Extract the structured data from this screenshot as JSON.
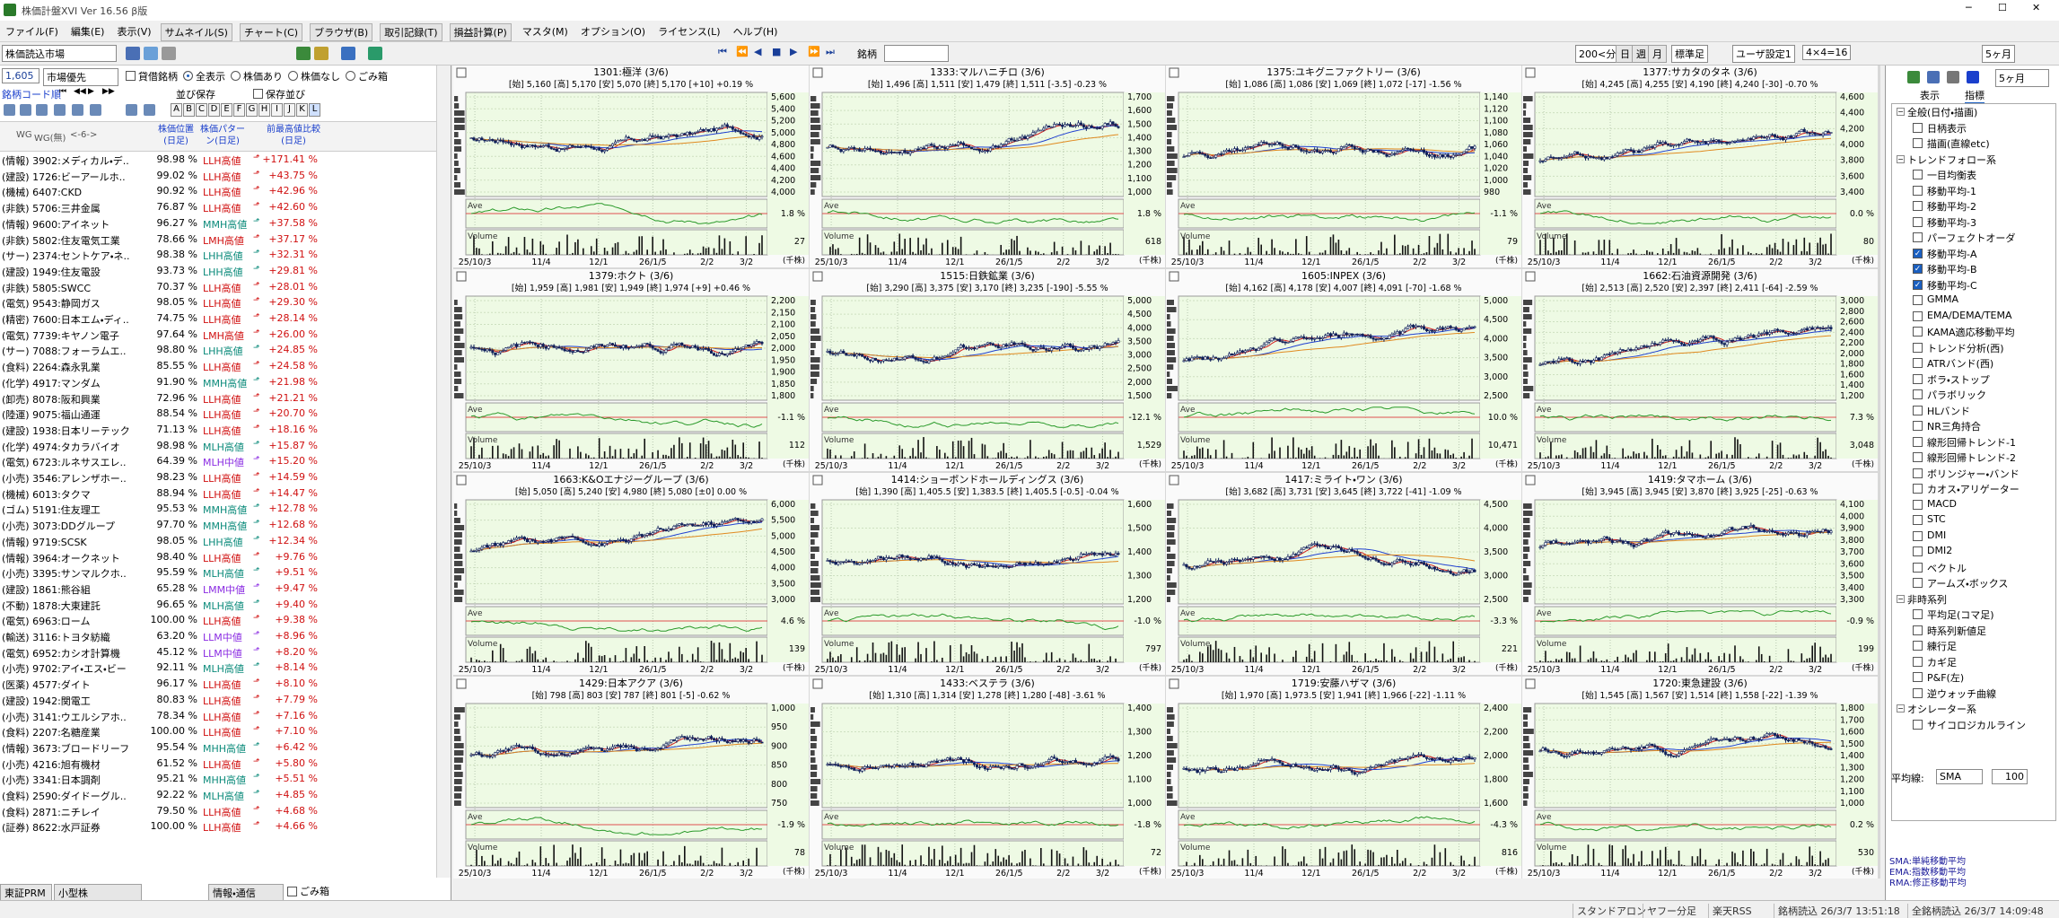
{
  "window": {
    "title": "株価計盤XVI Ver 16.56 β版"
  },
  "menu": [
    "ファイル(F)",
    "編集(E)",
    "表示(V)",
    "サムネイル(S)",
    "チャート(C)",
    "ブラウザ(B)",
    "取引記録(T)",
    "損益計算(P)",
    "マスタ(M)",
    "オプション(O)",
    "ライセンス(L)",
    "ヘルプ(H)"
  ],
  "toolbar": {
    "market": "株価読込市場",
    "stock_label": "銘柄",
    "interval": "200<分",
    "day": "日",
    "week": "週",
    "month": "月",
    "candle": "標準足",
    "user": "ユーザ設定1",
    "layout": "4×4=16",
    "period": "5ヶ月"
  },
  "list_panel": {
    "count": "1,605",
    "sort": "市場優先",
    "filters": [
      "貸借銘柄",
      "全表示",
      "株価あり",
      "株価なし",
      "ごみ箱"
    ],
    "code_label": "銘柄コード順",
    "save": "並び保存",
    "saved": "保存並び",
    "letters": [
      "A",
      "B",
      "C",
      "D",
      "E",
      "F",
      "G",
      "H",
      "I",
      "J",
      "K",
      "L"
    ],
    "columns": [
      "WG",
      "WG(無)",
      "<-6->",
      "株価位置(日足)",
      "株価パターン(日足)",
      "前最高値比較(日足)"
    ],
    "rows": [
      [
        "(情報) 3902:メディカル・デ..",
        "98.98 %",
        "LLH高値",
        "+171.41 %"
      ],
      [
        "(建設) 1726:ビーアールホ..",
        "99.02 %",
        "LLH高値",
        "+43.75 %"
      ],
      [
        "(機械) 6407:CKD",
        "90.92 %",
        "LLH高値",
        "+42.96 %"
      ],
      [
        "(非鉄) 5706:三井金属",
        "76.87 %",
        "LLH高値",
        "+42.60 %"
      ],
      [
        "(情報) 9600:アイネット",
        "96.27 %",
        "MMH高値",
        "+37.58 %"
      ],
      [
        "(非鉄) 5802:住友電気工業",
        "78.66 %",
        "LMH高値",
        "+37.17 %"
      ],
      [
        "(サー) 2374:セントケア・ネ..",
        "98.38 %",
        "LHH高値",
        "+32.31 %"
      ],
      [
        "(建設) 1949:住友電設",
        "93.73 %",
        "LHH高値",
        "+29.81 %"
      ],
      [
        "(非鉄) 5805:SWCC",
        "70.37 %",
        "LLH高値",
        "+28.01 %"
      ],
      [
        "(電気) 9543:静岡ガス",
        "98.05 %",
        "LLH高値",
        "+29.30 %"
      ],
      [
        "(精密) 7600:日本エム・ディ..",
        "74.75 %",
        "LLH高値",
        "+28.14 %"
      ],
      [
        "(電気) 7739:キヤノン電子",
        "97.64 %",
        "LMH高値",
        "+26.00 %"
      ],
      [
        "(サー) 7088:フォーラムエ..",
        "98.80 %",
        "LHH高値",
        "+24.85 %"
      ],
      [
        "(食料) 2264:森永乳業",
        "85.55 %",
        "LLH高値",
        "+24.58 %"
      ],
      [
        "(化学) 4917:マンダム",
        "91.90 %",
        "MMH高値",
        "+21.98 %"
      ],
      [
        "(卸売) 8078:阪和興業",
        "72.96 %",
        "LLH高値",
        "+21.21 %"
      ],
      [
        "(陸運) 9075:福山通運",
        "88.54 %",
        "LLH高値",
        "+20.70 %"
      ],
      [
        "(建設) 1938:日本リーテック",
        "71.13 %",
        "LLH高値",
        "+18.16 %"
      ],
      [
        "(化学) 4974:タカラバイオ",
        "98.98 %",
        "MLH高値",
        "+15.87 %"
      ],
      [
        "(電気) 6723:ルネサスエレ..",
        "64.39 %",
        "MLH中値",
        "+15.20 %"
      ],
      [
        "(小売) 3546:アレンザホー..",
        "98.23 %",
        "LLH高値",
        "+14.59 %"
      ],
      [
        "(機械) 6013:タクマ",
        "88.94 %",
        "LLH高値",
        "+14.47 %"
      ],
      [
        "(ゴム) 5191:住友理工",
        "95.53 %",
        "MMH高値",
        "+12.78 %"
      ],
      [
        "(小売) 3073:DDグループ",
        "97.70 %",
        "MMH高値",
        "+12.68 %"
      ],
      [
        "(情報) 9719:SCSK",
        "98.05 %",
        "LHH高値",
        "+12.34 %"
      ],
      [
        "(情報) 3964:オークネット",
        "98.40 %",
        "LLH高値",
        "+9.76 %"
      ],
      [
        "(小売) 3395:サンマルクホ..",
        "95.59 %",
        "MLH高値",
        "+9.51 %"
      ],
      [
        "(建設) 1861:熊谷組",
        "65.28 %",
        "LMM中値",
        "+9.47 %"
      ],
      [
        "(不動) 1878:大東建託",
        "96.65 %",
        "MLH高値",
        "+9.40 %"
      ],
      [
        "(電気) 6963:ローム",
        "100.00 %",
        "LLH高値",
        "+9.38 %"
      ],
      [
        "(輸送) 3116:トヨタ紡織",
        "63.20 %",
        "LLM中値",
        "+8.96 %"
      ],
      [
        "(電気) 6952:カシオ計算機",
        "45.12 %",
        "LLM中値",
        "+8.20 %"
      ],
      [
        "(小売) 9702:アイ・エス・ビー",
        "92.11 %",
        "MLH高値",
        "+8.14 %"
      ],
      [
        "(医薬) 4577:ダイト",
        "96.17 %",
        "LLH高値",
        "+8.10 %"
      ],
      [
        "(建設) 1942:関電工",
        "80.83 %",
        "LLH高値",
        "+7.79 %"
      ],
      [
        "(小売) 3141:ウエルシアホ..",
        "78.34 %",
        "LLH高値",
        "+7.16 %"
      ],
      [
        "(食料) 2207:名糖産業",
        "100.00 %",
        "LLH高値",
        "+7.10 %"
      ],
      [
        "(情報) 3673:ブロードリーフ",
        "95.54 %",
        "MHH高値",
        "+6.42 %"
      ],
      [
        "(小売) 4216:旭有機材",
        "61.52 %",
        "LLH高値",
        "+5.80 %"
      ],
      [
        "(小売) 3341:日本調剤",
        "95.21 %",
        "MHH高値",
        "+5.51 %"
      ],
      [
        "(食料) 2590:ダイドーグル..",
        "92.22 %",
        "MLH高値",
        "+4.85 %"
      ],
      [
        "(食料) 2871:ニチレイ",
        "79.50 %",
        "LLH高値",
        "+4.68 %"
      ],
      [
        "(証券) 8622:水戸証券",
        "100.00 %",
        "LLH高値",
        "+4.66 %"
      ]
    ],
    "footer": [
      "東証PRM",
      "小型株",
      "情報・通信",
      "ごみ箱"
    ]
  },
  "chart_common": {
    "x_labels": [
      "25/10/3",
      "11/4",
      "12/1",
      "26/1/5",
      "2/2",
      "3/2"
    ],
    "ave_label": "Ave",
    "volume_label": "Volume",
    "unit": "(千株)"
  },
  "charts": [
    {
      "title": "1301:極洋 (3/6)",
      "info": "[始] 5,160 [高] 5,170 [安] 5,070 [終] 5,170 [+10] +0.19 %",
      "yticks": [
        "5,600",
        "5,400",
        "5,200",
        "5,000",
        "4,800",
        "4,600",
        "4,400",
        "4,200",
        "4,000"
      ],
      "ave": "1.8 %",
      "volume": "27"
    },
    {
      "title": "1333:マルハニチロ (3/6)",
      "info": "[始] 1,496 [高] 1,511 [安] 1,479 [終] 1,511 [-3.5] -0.23 %",
      "yticks": [
        "1,700",
        "1,600",
        "1,500",
        "1,400",
        "1,300",
        "1,200",
        "1,100",
        "1,000"
      ],
      "ave": "1.8 %",
      "volume": "618"
    },
    {
      "title": "1375:ユキグニファクトリー (3/6)",
      "info": "[始] 1,086 [高] 1,086 [安] 1,069 [終] 1,072 [-17] -1.56 %",
      "yticks": [
        "1,140",
        "1,120",
        "1,100",
        "1,080",
        "1,060",
        "1,040",
        "1,020",
        "1,000",
        "980"
      ],
      "ave": "-1.1 %",
      "volume": "79"
    },
    {
      "title": "1377:サカタのタネ (3/6)",
      "info": "[始] 4,245 [高] 4,255 [安] 4,190 [終] 4,240 [-30] -0.70 %",
      "yticks": [
        "4,600",
        "4,400",
        "4,200",
        "4,000",
        "3,800",
        "3,600",
        "3,400"
      ],
      "ave": "0.0 %",
      "volume": "80"
    },
    {
      "title": "1379:ホクト (3/6)",
      "info": "[始] 1,959 [高] 1,981 [安] 1,949 [終] 1,974 [+9] +0.46 %",
      "yticks": [
        "2,200",
        "2,150",
        "2,100",
        "2,050",
        "2,000",
        "1,950",
        "1,900",
        "1,850",
        "1,800"
      ],
      "ave": "-1.1 %",
      "volume": "112"
    },
    {
      "title": "1515:日鉄鉱業 (3/6)",
      "info": "[始] 3,290 [高] 3,375 [安] 3,170 [終] 3,235 [-190] -5.55 %",
      "yticks": [
        "5,000",
        "4,500",
        "4,000",
        "3,500",
        "3,000",
        "2,500",
        "2,000",
        "1,500"
      ],
      "ave": "-12.1 %",
      "volume": "1,529"
    },
    {
      "title": "1605:INPEX (3/6)",
      "info": "[始] 4,162 [高] 4,178 [安] 4,007 [終] 4,091 [-70] -1.68 %",
      "yticks": [
        "5,000",
        "4,500",
        "4,000",
        "3,500",
        "3,000",
        "2,500"
      ],
      "ave": "10.0 %",
      "volume": "10,471"
    },
    {
      "title": "1662:石油資源開発 (3/6)",
      "info": "[始] 2,513 [高] 2,520 [安] 2,397 [終] 2,411 [-64] -2.59 %",
      "yticks": [
        "3,000",
        "2,800",
        "2,600",
        "2,400",
        "2,200",
        "2,000",
        "1,800",
        "1,600",
        "1,400",
        "1,200"
      ],
      "ave": "7.3 %",
      "volume": "3,048"
    },
    {
      "title": "1663:K&Oエナジーグループ (3/6)",
      "info": "[始] 5,050 [高] 5,240 [安] 4,980 [終] 5,080 [±0] 0.00 %",
      "yticks": [
        "6,000",
        "5,500",
        "5,000",
        "4,500",
        "4,000",
        "3,500",
        "3,000"
      ],
      "ave": "4.6 %",
      "volume": "139"
    },
    {
      "title": "1414:ショーボンドホールディングス (3/6)",
      "info": "[始] 1,390 [高] 1,405.5 [安] 1,383.5 [終] 1,405.5 [-0.5] -0.04 %",
      "yticks": [
        "1,600",
        "1,500",
        "1,400",
        "1,300",
        "1,200"
      ],
      "ave": "-1.0 %",
      "volume": "797"
    },
    {
      "title": "1417:ミライト・ワン (3/6)",
      "info": "[始] 3,682 [高] 3,731 [安] 3,645 [終] 3,722 [-41] -1.09 %",
      "yticks": [
        "4,500",
        "4,000",
        "3,500",
        "3,000",
        "2,500"
      ],
      "ave": "-3.3 %",
      "volume": "221"
    },
    {
      "title": "1419:タマホーム (3/6)",
      "info": "[始] 3,945 [高] 3,945 [安] 3,870 [終] 3,925 [-25] -0.63 %",
      "yticks": [
        "4,100",
        "4,000",
        "3,900",
        "3,800",
        "3,700",
        "3,600",
        "3,500",
        "3,400",
        "3,300"
      ],
      "ave": "-0.9 %",
      "volume": "199"
    },
    {
      "title": "1429:日本アクア (3/6)",
      "info": "[始] 798 [高] 803 [安] 787 [終] 801 [-5] -0.62 %",
      "yticks": [
        "1,000",
        "950",
        "900",
        "850",
        "800",
        "750"
      ],
      "ave": "-1.9 %",
      "volume": "78"
    },
    {
      "title": "1433:ベステラ (3/6)",
      "info": "[始] 1,310 [高] 1,314 [安] 1,278 [終] 1,280 [-48] -3.61 %",
      "yticks": [
        "1,400",
        "1,300",
        "1,200",
        "1,100",
        "1,000"
      ],
      "ave": "-1.8 %",
      "volume": "72"
    },
    {
      "title": "1719:安藤ハザマ (3/6)",
      "info": "[始] 1,970 [高] 1,973.5 [安] 1,941 [終] 1,966 [-22] -1.11 %",
      "yticks": [
        "2,400",
        "2,200",
        "2,000",
        "1,800",
        "1,600"
      ],
      "ave": "-4.3 %",
      "volume": "816"
    },
    {
      "title": "1720:東急建設 (3/6)",
      "info": "[始] 1,545 [高] 1,567 [安] 1,514 [終] 1,558 [-22] -1.39 %",
      "yticks": [
        "1,800",
        "1,700",
        "1,600",
        "1,500",
        "1,400",
        "1,300",
        "1,200",
        "1,100",
        "1,000"
      ],
      "ave": "0.2 %",
      "volume": "530"
    }
  ],
  "indicator_panel": {
    "tabs": [
      "表示",
      "指標"
    ],
    "items": [
      {
        "label": "全般(日付・描画)",
        "level": 0,
        "checked": false
      },
      {
        "label": "日柄表示",
        "level": 1,
        "checked": false
      },
      {
        "label": "描画(直線etc)",
        "level": 1,
        "checked": false
      },
      {
        "label": "トレンドフォロー系",
        "level": 0,
        "checked": false
      },
      {
        "label": "一目均衡表",
        "level": 1,
        "checked": false
      },
      {
        "label": "移動平均-1",
        "level": 1,
        "checked": false
      },
      {
        "label": "移動平均-2",
        "level": 1,
        "checked": false
      },
      {
        "label": "移動平均-3",
        "level": 1,
        "checked": false
      },
      {
        "label": "パーフェクトオーダ",
        "level": 1,
        "checked": false
      },
      {
        "label": "移動平均-A",
        "level": 1,
        "checked": true
      },
      {
        "label": "移動平均-B",
        "level": 1,
        "checked": true
      },
      {
        "label": "移動平均-C",
        "level": 1,
        "checked": true
      },
      {
        "label": "GMMA",
        "level": 1,
        "checked": false
      },
      {
        "label": "EMA/DEMA/TEMA",
        "level": 1,
        "checked": false
      },
      {
        "label": "KAMA適応移動平均",
        "level": 1,
        "checked": false
      },
      {
        "label": "トレンド分析(西)",
        "level": 1,
        "checked": false
      },
      {
        "label": "ATRバンド(西)",
        "level": 1,
        "checked": false
      },
      {
        "label": "ボラ・ストップ",
        "level": 1,
        "checked": false
      },
      {
        "label": "パラボリック",
        "level": 1,
        "checked": false
      },
      {
        "label": "HLバンド",
        "level": 1,
        "checked": false
      },
      {
        "label": "NR三角持合",
        "level": 1,
        "checked": false
      },
      {
        "label": "線形回帰トレンド-1",
        "level": 1,
        "checked": false
      },
      {
        "label": "線形回帰トレンド-2",
        "level": 1,
        "checked": false
      },
      {
        "label": "ボリンジャー・バンド",
        "level": 1,
        "checked": false
      },
      {
        "label": "カオス・アリゲーター",
        "level": 1,
        "checked": false
      },
      {
        "label": "MACD",
        "level": 1,
        "checked": false
      },
      {
        "label": "STC",
        "level": 1,
        "checked": false
      },
      {
        "label": "DMI",
        "level": 1,
        "checked": false
      },
      {
        "label": "DMI2",
        "level": 1,
        "checked": false
      },
      {
        "label": "ベクトル",
        "level": 1,
        "checked": false
      },
      {
        "label": "アームズ・ボックス",
        "level": 1,
        "checked": false
      },
      {
        "label": "非時系列",
        "level": 0,
        "checked": false
      },
      {
        "label": "平均足(コマ足)",
        "level": 1,
        "checked": false
      },
      {
        "label": "時系列新値足",
        "level": 1,
        "checked": false
      },
      {
        "label": "練行足",
        "level": 1,
        "checked": false
      },
      {
        "label": "カギ足",
        "level": 1,
        "checked": false
      },
      {
        "label": "P&F(左)",
        "level": 1,
        "checked": false
      },
      {
        "label": "逆ウォッチ曲線",
        "level": 1,
        "checked": false
      },
      {
        "label": "オシレーター系",
        "level": 0,
        "checked": false
      },
      {
        "label": "サイコロジカルライン",
        "level": 1,
        "checked": false
      }
    ],
    "ma_label": "平均線:",
    "ma_type": "SMA",
    "ma_period": "100",
    "legend": [
      "SMA:単純移動平均",
      "EMA:指数移動平均",
      "RMA:修正移動平均"
    ]
  },
  "status": [
    "スタンドアロン",
    "ヤフー分足",
    "楽天RSS",
    "銘柄読込 26/3/7 13:51:18",
    "全銘柄読込 26/3/7 14:09:48"
  ]
}
